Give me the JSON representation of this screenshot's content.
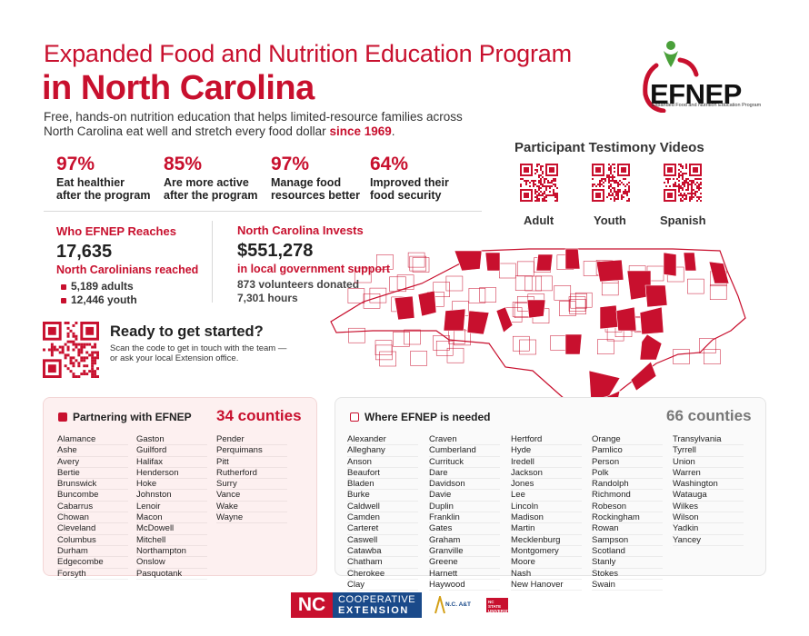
{
  "header": {
    "title_line1": "Expanded Food and Nutrition Education Program",
    "title_line2": "in North Carolina",
    "intro": "Free, hands-on nutrition education that helps limited-resource families across North Carolina eat well and stretch every food dollar",
    "intro_highlight": "since 1969",
    "intro_end": "."
  },
  "logo": {
    "text": "EFNEP",
    "subtitle": "Expanded Food and Nutrition Education Program",
    "accent_red": "#c8102e",
    "accent_green": "#4aa03a"
  },
  "stats": [
    {
      "pct": "97%",
      "label_1": "Eat healthier",
      "label_2": "after the program"
    },
    {
      "pct": "85%",
      "label_1": "Are more active",
      "label_2": "after the program"
    },
    {
      "pct": "97%",
      "label_1": "Manage food",
      "label_2": "resources better"
    },
    {
      "pct": "64%",
      "label_1": "Improved their",
      "label_2": "food security"
    }
  ],
  "reach": {
    "heading": "Who EFNEP Reaches",
    "total": "17,635",
    "total_label": "North Carolinians reached",
    "adults": "5,189 adults",
    "youth": "12,446 youth"
  },
  "invest": {
    "heading": "North Carolina Invests",
    "amount": "$551,278",
    "amount_label": "in local government support",
    "volunteers": "873 volunteers donated",
    "hours": "7,301 hours"
  },
  "ready": {
    "heading": "Ready to get started?",
    "text": "Scan the code to get in touch with the team — or ask your local Extension office."
  },
  "testimony": {
    "heading": "Participant Testimony Videos",
    "labels": [
      "Adult",
      "Youth",
      "Spanish"
    ]
  },
  "partnering": {
    "heading": "Partnering with EFNEP",
    "count": "34 counties",
    "col1": [
      "Alamance",
      "Ashe",
      "Avery",
      "Bertie",
      "Brunswick",
      "Buncombe",
      "Cabarrus",
      "Chowan",
      "Cleveland",
      "Columbus",
      "Durham",
      "Edgecombe",
      "Forsyth"
    ],
    "col2": [
      "Gaston",
      "Guilford",
      "Halifax",
      "Henderson",
      "Hoke",
      "Johnston",
      "Lenoir",
      "Macon",
      "McDowell",
      "Mitchell",
      "Northampton",
      "Onslow",
      "Pasquotank"
    ],
    "col3": [
      "Pender",
      "Perquimans",
      "Pitt",
      "Rutherford",
      "Surry",
      "Vance",
      "Wake",
      "Wayne"
    ]
  },
  "needed": {
    "heading": "Where EFNEP is needed",
    "count": "66 counties",
    "col1": [
      "Alexander",
      "Alleghany",
      "Anson",
      "Beaufort",
      "Bladen",
      "Burke",
      "Caldwell",
      "Camden",
      "Carteret",
      "Caswell",
      "Catawba",
      "Chatham",
      "Cherokee",
      "Clay"
    ],
    "col2": [
      "Craven",
      "Cumberland",
      "Currituck",
      "Dare",
      "Davidson",
      "Davie",
      "Duplin",
      "Franklin",
      "Gates",
      "Graham",
      "Granville",
      "Greene",
      "Harnett",
      "Haywood"
    ],
    "col3": [
      "Hertford",
      "Hyde",
      "Iredell",
      "Jackson",
      "Jones",
      "Lee",
      "Lincoln",
      "Madison",
      "Martin",
      "Mecklenburg",
      "Montgomery",
      "Moore",
      "Nash",
      "New Hanover"
    ],
    "col4": [
      "Orange",
      "Pamlico",
      "Person",
      "Polk",
      "Randolph",
      "Richmond",
      "Robeson",
      "Rockingham",
      "Rowan",
      "Sampson",
      "Scotland",
      "Stanly",
      "Stokes",
      "Swain"
    ],
    "col5": [
      "Transylvania",
      "Tyrrell",
      "Union",
      "Warren",
      "Washington",
      "Watauga",
      "Wilkes",
      "Wilson",
      "Yadkin",
      "Yancey"
    ]
  },
  "footer": {
    "nc": "NC",
    "coop_line1": "COOPERATIVE",
    "coop_line2": "EXTENSION",
    "aandt": "N.C. A&T",
    "ncstate": "NC STATE UNIVERSITY"
  }
}
